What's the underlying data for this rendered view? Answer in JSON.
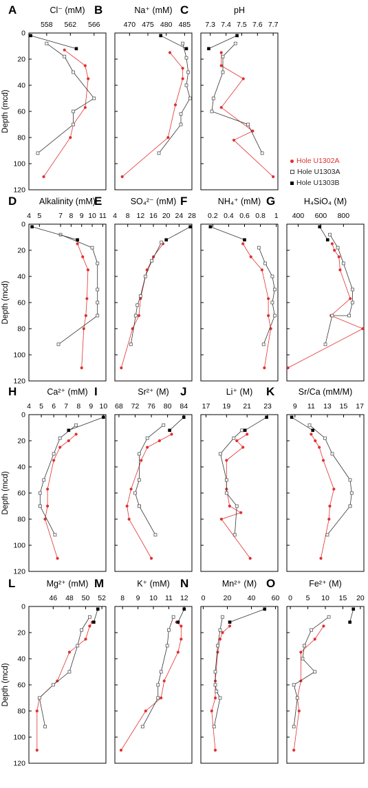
{
  "figure": {
    "ylabel": "Depth (mcd)",
    "legend": [
      {
        "name": "Hole U1302A",
        "color": "#e03030",
        "marker": "dot"
      },
      {
        "name": "Hole U1303A",
        "color": "#444444",
        "marker": "open-square"
      },
      {
        "name": "Hole U1303B",
        "color": "#000000",
        "marker": "filled-square"
      }
    ]
  },
  "chart_data": [
    {
      "letter": "A",
      "type": "line",
      "title": "Cl⁻ (mM)",
      "xticks": [
        558,
        562,
        566
      ],
      "xlim": [
        555,
        568
      ],
      "yticks": [
        0,
        20,
        40,
        60,
        80,
        100,
        120
      ],
      "ylim": [
        0,
        120
      ],
      "series": [
        {
          "name": "Hole U1302A",
          "x": [
            561,
            564.5,
            565,
            564.5,
            562.5,
            562,
            557.5
          ],
          "y": [
            13,
            25,
            35,
            57,
            70,
            80,
            110
          ]
        },
        {
          "name": "Hole U1303A",
          "x": [
            558,
            561,
            562.5,
            566,
            562.5,
            562.5,
            556.5
          ],
          "y": [
            8,
            18,
            30,
            50,
            60,
            70,
            92
          ]
        },
        {
          "name": "Hole U1303B",
          "x": [
            555.3,
            563
          ],
          "y": [
            2,
            12
          ]
        }
      ]
    },
    {
      "letter": "B",
      "type": "line",
      "title": "Na⁺ (mM)",
      "xticks": [
        470,
        475,
        480,
        485
      ],
      "xlim": [
        466,
        487
      ],
      "yticks": [
        0,
        20,
        40,
        60,
        80,
        100,
        120
      ],
      "ylim": [
        0,
        120
      ],
      "series": [
        {
          "name": "Hole U1302A",
          "x": [
            481,
            484.5,
            484.5,
            482.5,
            480.5,
            468
          ],
          "y": [
            15,
            27,
            35,
            55,
            80,
            110
          ]
        },
        {
          "name": "Hole U1303A",
          "x": [
            484.5,
            485.5,
            486,
            485.5,
            486.5,
            484,
            484,
            478
          ],
          "y": [
            8,
            19,
            30,
            40,
            50,
            62,
            70,
            92
          ]
        },
        {
          "name": "Hole U1303B",
          "x": [
            478.5,
            485.5
          ],
          "y": [
            2,
            12
          ]
        }
      ]
    },
    {
      "letter": "C",
      "type": "line",
      "title": "pH",
      "xticks": [
        7.3,
        7.4,
        7.5,
        7.6,
        7.7
      ],
      "xlim": [
        7.24,
        7.73
      ],
      "yticks": [
        0,
        20,
        40,
        60,
        80,
        100,
        120
      ],
      "ylim": [
        0,
        120
      ],
      "series": [
        {
          "name": "Hole U1302A",
          "x": [
            7.37,
            7.37,
            7.51,
            7.37,
            7.57,
            7.45,
            7.7
          ],
          "y": [
            15,
            25,
            35,
            57,
            75,
            82,
            110
          ]
        },
        {
          "name": "Hole U1303A",
          "x": [
            7.46,
            7.38,
            7.38,
            7.32,
            7.31,
            7.54,
            7.63
          ],
          "y": [
            8,
            18,
            30,
            50,
            60,
            70,
            92
          ]
        },
        {
          "name": "Hole U1303B",
          "x": [
            7.47,
            7.29
          ],
          "y": [
            2,
            12
          ]
        }
      ]
    },
    {
      "letter": "D",
      "type": "line",
      "title": "Alkalinity (mM)",
      "xticks": [
        4,
        5,
        7,
        8,
        9,
        10,
        11
      ],
      "xlim": [
        4,
        11.3
      ],
      "yticks": [
        0,
        20,
        40,
        60,
        80,
        100,
        120
      ],
      "ylim": [
        0,
        120
      ],
      "series": [
        {
          "name": "Hole U1302A",
          "x": [
            8.6,
            9.1,
            9.6,
            9.5,
            9.4,
            9.2,
            9
          ],
          "y": [
            15,
            25,
            35,
            57,
            70,
            80,
            110
          ]
        },
        {
          "name": "Hole U1303A",
          "x": [
            7,
            10,
            10.5,
            10.5,
            10.5,
            10.5,
            6.8
          ],
          "y": [
            8,
            18,
            30,
            50,
            60,
            70,
            92
          ]
        },
        {
          "name": "Hole U1303B",
          "x": [
            4.3,
            8.6
          ],
          "y": [
            2,
            12
          ]
        }
      ]
    },
    {
      "letter": "E",
      "type": "line",
      "title": "SO₄²⁻ (mM)",
      "xticks": [
        4,
        8,
        12,
        16,
        20,
        24,
        28
      ],
      "xlim": [
        4,
        28
      ],
      "yticks": [
        0,
        20,
        40,
        60,
        80,
        100,
        120
      ],
      "ylim": [
        0,
        120
      ],
      "series": [
        {
          "name": "Hole U1302A",
          "x": [
            19,
            16,
            14,
            12,
            11.5,
            9.5,
            6
          ],
          "y": [
            15,
            25,
            35,
            57,
            70,
            80,
            110
          ]
        },
        {
          "name": "Hole U1303A",
          "x": [
            18.5,
            15.5,
            13.5,
            12,
            11,
            10.5,
            9
          ],
          "y": [
            14,
            28,
            40,
            55,
            62,
            70,
            92
          ]
        },
        {
          "name": "Hole U1303B",
          "x": [
            27.5,
            20
          ],
          "y": [
            2,
            12
          ]
        }
      ]
    },
    {
      "letter": "F",
      "type": "line",
      "title": "NH₄⁺ (mM)",
      "xticks": [
        0.2,
        0.4,
        0.6,
        0.8,
        1
      ],
      "xlim": [
        0.05,
        1.02
      ],
      "yticks": [
        0,
        20,
        40,
        60,
        80,
        100,
        120
      ],
      "ylim": [
        0,
        120
      ],
      "series": [
        {
          "name": "Hole U1302A",
          "x": [
            0.58,
            0.68,
            0.82,
            0.9,
            0.9,
            0.93,
            0.85
          ],
          "y": [
            15,
            25,
            35,
            57,
            70,
            80,
            110
          ]
        },
        {
          "name": "Hole U1303A",
          "x": [
            0.78,
            0.86,
            0.95,
            0.98,
            0.95,
            0.98,
            0.84
          ],
          "y": [
            18,
            30,
            40,
            50,
            60,
            70,
            92
          ]
        },
        {
          "name": "Hole U1303B",
          "x": [
            0.17,
            0.6
          ],
          "y": [
            2,
            12
          ]
        }
      ]
    },
    {
      "letter": "G",
      "type": "line",
      "title": "H₄SiO₄ (M)",
      "xticks": [
        400,
        600,
        800
      ],
      "xlim": [
        300,
        980
      ],
      "yticks": [
        0,
        20,
        40,
        60,
        80,
        100,
        120
      ],
      "ylim": [
        0,
        120
      ],
      "series": [
        {
          "name": "Hole U1302A",
          "x": [
            700,
            720,
            760,
            770,
            860,
            690,
            970,
            310
          ],
          "y": [
            15,
            20,
            25,
            35,
            57,
            70,
            80,
            110
          ]
        },
        {
          "name": "Hole U1303A",
          "x": [
            680,
            750,
            800,
            880,
            880,
            850,
            700,
            640
          ],
          "y": [
            8,
            18,
            30,
            50,
            60,
            70,
            70,
            92
          ]
        },
        {
          "name": "Hole U1303B",
          "x": [
            590,
            660
          ],
          "y": [
            2,
            12
          ]
        }
      ]
    },
    {
      "letter": "H",
      "type": "line",
      "title": "Ca²⁺ (mM)",
      "xticks": [
        4,
        5,
        6,
        7,
        8,
        9,
        10
      ],
      "xlim": [
        4,
        10.2
      ],
      "yticks": [
        0,
        20,
        40,
        60,
        80,
        100,
        120
      ],
      "ylim": [
        0,
        120
      ],
      "series": [
        {
          "name": "Hole U1302A",
          "x": [
            7.8,
            7.2,
            6.5,
            6,
            5.5,
            5.5,
            5.3,
            6.3
          ],
          "y": [
            15,
            20,
            25,
            35,
            57,
            70,
            80,
            110
          ]
        },
        {
          "name": "Hole U1303A",
          "x": [
            7.8,
            6.5,
            6,
            5.2,
            4.9,
            4.9,
            4.9,
            6.1
          ],
          "y": [
            8,
            18,
            30,
            50,
            60,
            70,
            70,
            92
          ]
        },
        {
          "name": "Hole U1303B",
          "x": [
            10,
            7.2
          ],
          "y": [
            2,
            12
          ]
        }
      ]
    },
    {
      "letter": "I",
      "type": "line",
      "title": "Sr²⁺ (M)",
      "xticks": [
        68,
        72,
        76,
        80,
        84
      ],
      "xlim": [
        67,
        86
      ],
      "yticks": [
        0,
        20,
        40,
        60,
        80,
        100,
        120
      ],
      "ylim": [
        0,
        120
      ],
      "series": [
        {
          "name": "Hole U1302A",
          "x": [
            81,
            78,
            75,
            73.5,
            71,
            70,
            70.5,
            76
          ],
          "y": [
            15,
            20,
            25,
            35,
            57,
            70,
            80,
            110
          ]
        },
        {
          "name": "Hole U1303A",
          "x": [
            79,
            75,
            73,
            73,
            72,
            73,
            73,
            77
          ],
          "y": [
            8,
            18,
            30,
            50,
            60,
            70,
            70,
            92
          ]
        },
        {
          "name": "Hole U1303B",
          "x": [
            84,
            80.5
          ],
          "y": [
            2,
            12
          ]
        }
      ]
    },
    {
      "letter": "J",
      "type": "line",
      "title": "Li⁺ (M)",
      "xticks": [
        17,
        19,
        21,
        23
      ],
      "xlim": [
        16.5,
        24
      ],
      "yticks": [
        0,
        20,
        40,
        60,
        80,
        100,
        120
      ],
      "ylim": [
        0,
        120
      ],
      "series": [
        {
          "name": "Hole U1302A",
          "x": [
            21,
            20,
            20.6,
            19,
            19,
            19.3,
            20.4,
            18.5,
            21.3
          ],
          "y": [
            15,
            20,
            25,
            35,
            57,
            70,
            75,
            80,
            110
          ]
        },
        {
          "name": "Hole U1303A",
          "x": [
            20.5,
            19.7,
            18.4,
            19,
            19,
            20,
            19.8
          ],
          "y": [
            12,
            18,
            30,
            50,
            60,
            70,
            92
          ]
        },
        {
          "name": "Hole U1303B",
          "x": [
            22.9,
            20.8
          ],
          "y": [
            2,
            12
          ]
        }
      ]
    },
    {
      "letter": "K",
      "type": "line",
      "title": "Sr/Ca (mM/M)",
      "xticks": [
        9,
        11,
        13,
        15,
        17
      ],
      "xlim": [
        8,
        17.5
      ],
      "yticks": [
        0,
        20,
        40,
        60,
        80,
        100,
        120
      ],
      "ylim": [
        0,
        120
      ],
      "series": [
        {
          "name": "Hole U1302A",
          "x": [
            11,
            11.5,
            12,
            12.5,
            13.8,
            13.3,
            13.2,
            12.2
          ],
          "y": [
            15,
            20,
            25,
            35,
            57,
            70,
            80,
            110
          ]
        },
        {
          "name": "Hole U1303A",
          "x": [
            10.8,
            12.7,
            13.6,
            15.8,
            16,
            15.8,
            15.8,
            13
          ],
          "y": [
            8,
            18,
            30,
            50,
            60,
            70,
            70,
            92
          ]
        },
        {
          "name": "Hole U1303B",
          "x": [
            8.6,
            11.2
          ],
          "y": [
            2,
            12
          ]
        }
      ]
    },
    {
      "letter": "L",
      "type": "line",
      "title": "Mg²⁺ (mM)",
      "xticks": [
        46,
        48,
        50,
        52
      ],
      "xlim": [
        43,
        52.5
      ],
      "yticks": [
        0,
        20,
        40,
        60,
        80,
        100,
        120
      ],
      "ylim": [
        0,
        120
      ],
      "series": [
        {
          "name": "Hole U1302A",
          "x": [
            50.8,
            50.5,
            50,
            48,
            46.5,
            44.3,
            44,
            44
          ],
          "y": [
            12,
            15,
            25,
            35,
            57,
            70,
            80,
            110
          ]
        },
        {
          "name": "Hole U1303A",
          "x": [
            50.5,
            49.5,
            49,
            48,
            46,
            44.3,
            45
          ],
          "y": [
            8,
            18,
            30,
            50,
            60,
            70,
            92
          ]
        },
        {
          "name": "Hole U1303B",
          "x": [
            51.5,
            51
          ],
          "y": [
            2,
            12
          ]
        }
      ]
    },
    {
      "letter": "M",
      "type": "line",
      "title": "K⁺ (mM)",
      "xticks": [
        8,
        9,
        10,
        11,
        12
      ],
      "xlim": [
        7.5,
        12.5
      ],
      "yticks": [
        0,
        20,
        40,
        60,
        80,
        100,
        120
      ],
      "ylim": [
        0,
        120
      ],
      "series": [
        {
          "name": "Hole U1302A",
          "x": [
            11.5,
            11.8,
            11.8,
            11.6,
            10.7,
            10.5,
            9.5,
            7.9
          ],
          "y": [
            12,
            15,
            25,
            35,
            57,
            70,
            80,
            110
          ]
        },
        {
          "name": "Hole U1303A",
          "x": [
            11.3,
            11,
            10.9,
            10.5,
            10.3,
            10.3,
            9.3
          ],
          "y": [
            8,
            18,
            30,
            50,
            60,
            70,
            92
          ]
        },
        {
          "name": "Hole U1303B",
          "x": [
            12,
            11.6
          ],
          "y": [
            2,
            12
          ]
        }
      ]
    },
    {
      "letter": "N",
      "type": "line",
      "title": "Mn²⁺ (M)",
      "xticks": [
        0,
        20,
        40,
        60
      ],
      "xlim": [
        -2,
        62
      ],
      "yticks": [
        0,
        20,
        40,
        60,
        80,
        100,
        120
      ],
      "ylim": [
        0,
        120
      ],
      "series": [
        {
          "name": "Hole U1302A",
          "x": [
            22,
            16,
            14,
            12,
            10,
            10,
            7,
            10
          ],
          "y": [
            15,
            20,
            25,
            35,
            57,
            70,
            80,
            110
          ]
        },
        {
          "name": "Hole U1303A",
          "x": [
            16,
            14,
            12,
            10,
            10,
            11,
            14,
            9
          ],
          "y": [
            8,
            18,
            30,
            50,
            60,
            65,
            70,
            92
          ]
        },
        {
          "name": "Hole U1303B",
          "x": [
            51,
            22
          ],
          "y": [
            2,
            12
          ]
        }
      ]
    },
    {
      "letter": "O",
      "type": "line",
      "title": "Fe²⁺ (M)",
      "xticks": [
        0,
        5,
        10,
        15,
        20
      ],
      "xlim": [
        -1,
        21
      ],
      "yticks": [
        0,
        20,
        40,
        60,
        80,
        100,
        120
      ],
      "ylim": [
        0,
        120
      ],
      "series": [
        {
          "name": "Hole U1302A",
          "x": [
            9.5,
            7,
            3,
            3,
            2,
            2,
            2.5,
            1
          ],
          "y": [
            15,
            25,
            35,
            57,
            70,
            70,
            80,
            110
          ]
        },
        {
          "name": "Hole U1303A",
          "x": [
            11,
            6,
            4,
            3.5,
            7,
            1,
            2,
            1
          ],
          "y": [
            8,
            18,
            30,
            40,
            50,
            60,
            70,
            92
          ]
        },
        {
          "name": "Hole U1303B",
          "x": [
            18,
            17
          ],
          "y": [
            2,
            12
          ]
        }
      ]
    }
  ]
}
